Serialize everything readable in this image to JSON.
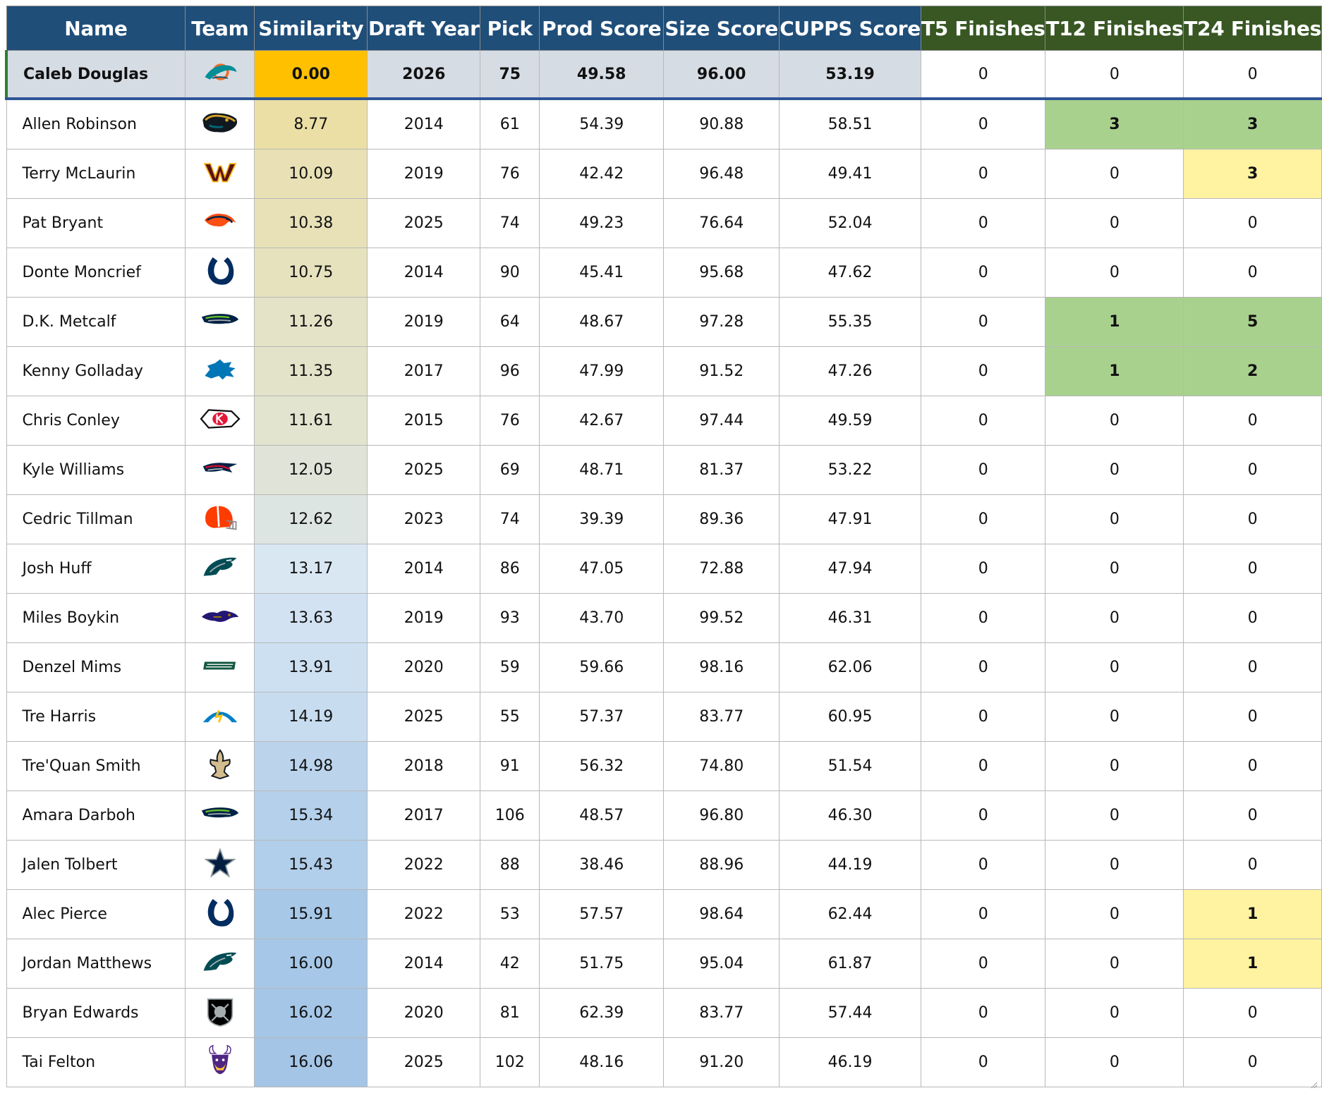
{
  "colors": {
    "header_blue": "#1f4e79",
    "header_green": "#385723",
    "target_row_gray": "#d6dce4",
    "target_similarity": "#ffc000",
    "highlight_green": "#a9d18e",
    "highlight_yellow": "#fff2a0"
  },
  "columns": [
    "Name",
    "Team",
    "Similarity",
    "Draft Year",
    "Pick",
    "Prod Score",
    "Size Score",
    "CUPPS Score",
    "T5 Finishes",
    "T12 Finishes",
    "T24 Finishes"
  ],
  "target": {
    "name": "Caleb Douglas",
    "team_icon": "dolphins-logo-icon",
    "similarity": "0.00",
    "draft_year": "2026",
    "pick": "75",
    "prod": "49.58",
    "size": "96.00",
    "cupps": "53.19",
    "t5": "0",
    "t12": "0",
    "t24": "0"
  },
  "rows": [
    {
      "name": "Allen Robinson",
      "team_icon": "jaguars-logo-icon",
      "similarity": "8.77",
      "sim_color": "#ecdfa6",
      "draft_year": "2014",
      "pick": "61",
      "prod": "54.39",
      "size": "90.88",
      "cupps": "58.51",
      "t5": "0",
      "t12": "3",
      "t24": "3",
      "t12_color": "#a9d18e",
      "t24_color": "#a9d18e"
    },
    {
      "name": "Terry McLaurin",
      "team_icon": "commanders-logo-icon",
      "similarity": "10.09",
      "sim_color": "#e9e1b5",
      "draft_year": "2019",
      "pick": "76",
      "prod": "42.42",
      "size": "96.48",
      "cupps": "49.41",
      "t5": "0",
      "t12": "0",
      "t24": "3",
      "t24_color": "#fff2a0"
    },
    {
      "name": "Pat Bryant",
      "team_icon": "broncos-logo-icon",
      "similarity": "10.38",
      "sim_color": "#e8e1b8",
      "draft_year": "2025",
      "pick": "74",
      "prod": "49.23",
      "size": "76.64",
      "cupps": "52.04",
      "t5": "0",
      "t12": "0",
      "t24": "0"
    },
    {
      "name": "Donte Moncrief",
      "team_icon": "colts-logo-icon",
      "similarity": "10.75",
      "sim_color": "#e6e2be",
      "draft_year": "2014",
      "pick": "90",
      "prod": "45.41",
      "size": "95.68",
      "cupps": "47.62",
      "t5": "0",
      "t12": "0",
      "t24": "0"
    },
    {
      "name": "D.K. Metcalf",
      "team_icon": "seahawks-logo-icon",
      "similarity": "11.26",
      "sim_color": "#e4e3c7",
      "draft_year": "2019",
      "pick": "64",
      "prod": "48.67",
      "size": "97.28",
      "cupps": "55.35",
      "t5": "0",
      "t12": "1",
      "t24": "5",
      "t12_color": "#a9d18e",
      "t24_color": "#a9d18e"
    },
    {
      "name": "Kenny Golladay",
      "team_icon": "lions-logo-icon",
      "similarity": "11.35",
      "sim_color": "#e3e3c9",
      "draft_year": "2017",
      "pick": "96",
      "prod": "47.99",
      "size": "91.52",
      "cupps": "47.26",
      "t5": "0",
      "t12": "1",
      "t24": "2",
      "t12_color": "#a9d18e",
      "t24_color": "#a9d18e"
    },
    {
      "name": "Chris Conley",
      "team_icon": "chiefs-logo-icon",
      "similarity": "11.61",
      "sim_color": "#e2e4cf",
      "draft_year": "2015",
      "pick": "76",
      "prod": "42.67",
      "size": "97.44",
      "cupps": "49.59",
      "t5": "0",
      "t12": "0",
      "t24": "0"
    },
    {
      "name": "Kyle Williams",
      "team_icon": "patriots-logo-icon",
      "similarity": "12.05",
      "sim_color": "#e0e4d8",
      "draft_year": "2025",
      "pick": "69",
      "prod": "48.71",
      "size": "81.37",
      "cupps": "53.22",
      "t5": "0",
      "t12": "0",
      "t24": "0"
    },
    {
      "name": "Cedric Tillman",
      "team_icon": "browns-logo-icon",
      "similarity": "12.62",
      "sim_color": "#dde5e2",
      "draft_year": "2023",
      "pick": "74",
      "prod": "39.39",
      "size": "89.36",
      "cupps": "47.91",
      "t5": "0",
      "t12": "0",
      "t24": "0"
    },
    {
      "name": "Josh Huff",
      "team_icon": "eagles-logo-icon",
      "similarity": "13.17",
      "sim_color": "#d9e7f3",
      "draft_year": "2014",
      "pick": "86",
      "prod": "47.05",
      "size": "72.88",
      "cupps": "47.94",
      "t5": "0",
      "t12": "0",
      "t24": "0"
    },
    {
      "name": "Miles Boykin",
      "team_icon": "ravens-logo-icon",
      "similarity": "13.63",
      "sim_color": "#d2e2f3",
      "draft_year": "2019",
      "pick": "93",
      "prod": "43.70",
      "size": "99.52",
      "cupps": "46.31",
      "t5": "0",
      "t12": "0",
      "t24": "0"
    },
    {
      "name": "Denzel Mims",
      "team_icon": "jets-logo-icon",
      "similarity": "13.91",
      "sim_color": "#cde0f2",
      "draft_year": "2020",
      "pick": "59",
      "prod": "59.66",
      "size": "98.16",
      "cupps": "62.06",
      "t5": "0",
      "t12": "0",
      "t24": "0"
    },
    {
      "name": "Tre Harris",
      "team_icon": "chargers-logo-icon",
      "similarity": "14.19",
      "sim_color": "#c8dcf0",
      "draft_year": "2025",
      "pick": "55",
      "prod": "57.37",
      "size": "83.77",
      "cupps": "60.95",
      "t5": "0",
      "t12": "0",
      "t24": "0"
    },
    {
      "name": "Tre'Quan Smith",
      "team_icon": "saints-logo-icon",
      "similarity": "14.98",
      "sim_color": "#bbd4ec",
      "draft_year": "2018",
      "pick": "91",
      "prod": "56.32",
      "size": "74.80",
      "cupps": "51.54",
      "t5": "0",
      "t12": "0",
      "t24": "0"
    },
    {
      "name": "Amara Darboh",
      "team_icon": "seahawks-logo-icon",
      "similarity": "15.34",
      "sim_color": "#b4d0eb",
      "draft_year": "2017",
      "pick": "106",
      "prod": "48.57",
      "size": "96.80",
      "cupps": "46.30",
      "t5": "0",
      "t12": "0",
      "t24": "0"
    },
    {
      "name": "Jalen Tolbert",
      "team_icon": "cowboys-logo-icon",
      "similarity": "15.43",
      "sim_color": "#b1ceea",
      "draft_year": "2022",
      "pick": "88",
      "prod": "38.46",
      "size": "88.96",
      "cupps": "44.19",
      "t5": "0",
      "t12": "0",
      "t24": "0"
    },
    {
      "name": "Alec Pierce",
      "team_icon": "colts-logo-icon",
      "similarity": "15.91",
      "sim_color": "#a8c8e8",
      "draft_year": "2022",
      "pick": "53",
      "prod": "57.57",
      "size": "98.64",
      "cupps": "62.44",
      "t5": "0",
      "t12": "0",
      "t24": "1",
      "t24_color": "#fff2a0"
    },
    {
      "name": "Jordan Matthews",
      "team_icon": "eagles-logo-icon",
      "similarity": "16.00",
      "sim_color": "#a6c7e7",
      "draft_year": "2014",
      "pick": "42",
      "prod": "51.75",
      "size": "95.04",
      "cupps": "61.87",
      "t5": "0",
      "t12": "0",
      "t24": "1",
      "t24_color": "#fff2a0"
    },
    {
      "name": "Bryan Edwards",
      "team_icon": "raiders-logo-icon",
      "similarity": "16.02",
      "sim_color": "#a5c6e7",
      "draft_year": "2020",
      "pick": "81",
      "prod": "62.39",
      "size": "83.77",
      "cupps": "57.44",
      "t5": "0",
      "t12": "0",
      "t24": "0"
    },
    {
      "name": "Tai Felton",
      "team_icon": "vikings-logo-icon",
      "similarity": "16.06",
      "sim_color": "#a4c5e6",
      "draft_year": "2025",
      "pick": "102",
      "prod": "48.16",
      "size": "91.20",
      "cupps": "46.19",
      "t5": "0",
      "t12": "0",
      "t24": "0"
    }
  ]
}
